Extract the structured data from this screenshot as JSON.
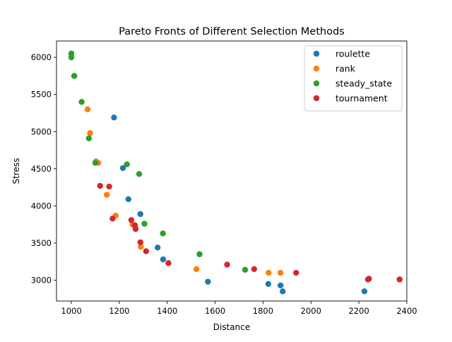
{
  "chart_data": {
    "type": "scatter",
    "title": "Pareto Fronts of Different Selection Methods",
    "xlabel": "Distance",
    "ylabel": "Stress",
    "xlim": [
      938,
      2400
    ],
    "ylim": [
      2720,
      6220
    ],
    "xticks": [
      1000,
      1200,
      1400,
      1600,
      1800,
      2000,
      2200,
      2400
    ],
    "yticks": [
      3000,
      3500,
      4000,
      4500,
      5000,
      5500,
      6000
    ],
    "grid": false,
    "legend_position": "top-right",
    "series": [
      {
        "name": "roulette",
        "color": "#1f77b4",
        "points": [
          [
            1000,
            6050
          ],
          [
            1012,
            5750
          ],
          [
            1178,
            5190
          ],
          [
            1215,
            4510
          ],
          [
            1238,
            4090
          ],
          [
            1288,
            3890
          ],
          [
            1360,
            3440
          ],
          [
            1383,
            3280
          ],
          [
            1570,
            2980
          ],
          [
            1822,
            2950
          ],
          [
            1873,
            2930
          ],
          [
            1882,
            2850
          ],
          [
            2223,
            2850
          ]
        ]
      },
      {
        "name": "rank",
        "color": "#ff7f0e",
        "points": [
          [
            1068,
            5300
          ],
          [
            1078,
            4980
          ],
          [
            1103,
            4600
          ],
          [
            1112,
            4580
          ],
          [
            1148,
            4150
          ],
          [
            1185,
            3870
          ],
          [
            1255,
            3750
          ],
          [
            1290,
            3450
          ],
          [
            1522,
            3150
          ],
          [
            1823,
            3100
          ],
          [
            1873,
            3100
          ]
        ]
      },
      {
        "name": "steady_state",
        "color": "#2ca02c",
        "points": [
          [
            1000,
            6050
          ],
          [
            1000,
            6000
          ],
          [
            1012,
            5750
          ],
          [
            1043,
            5400
          ],
          [
            1073,
            4910
          ],
          [
            1100,
            4580
          ],
          [
            1232,
            4560
          ],
          [
            1283,
            4430
          ],
          [
            1305,
            3760
          ],
          [
            1382,
            3630
          ],
          [
            1535,
            3350
          ],
          [
            1725,
            3140
          ]
        ]
      },
      {
        "name": "tournament",
        "color": "#d62728",
        "points": [
          [
            1120,
            4270
          ],
          [
            1158,
            4260
          ],
          [
            1172,
            3830
          ],
          [
            1250,
            3810
          ],
          [
            1265,
            3740
          ],
          [
            1268,
            3690
          ],
          [
            1288,
            3510
          ],
          [
            1312,
            3390
          ],
          [
            1405,
            3230
          ],
          [
            1650,
            3210
          ],
          [
            1763,
            3150
          ],
          [
            1938,
            3100
          ],
          [
            2242,
            3020
          ],
          [
            2238,
            3010
          ],
          [
            2370,
            3010
          ]
        ]
      }
    ]
  }
}
